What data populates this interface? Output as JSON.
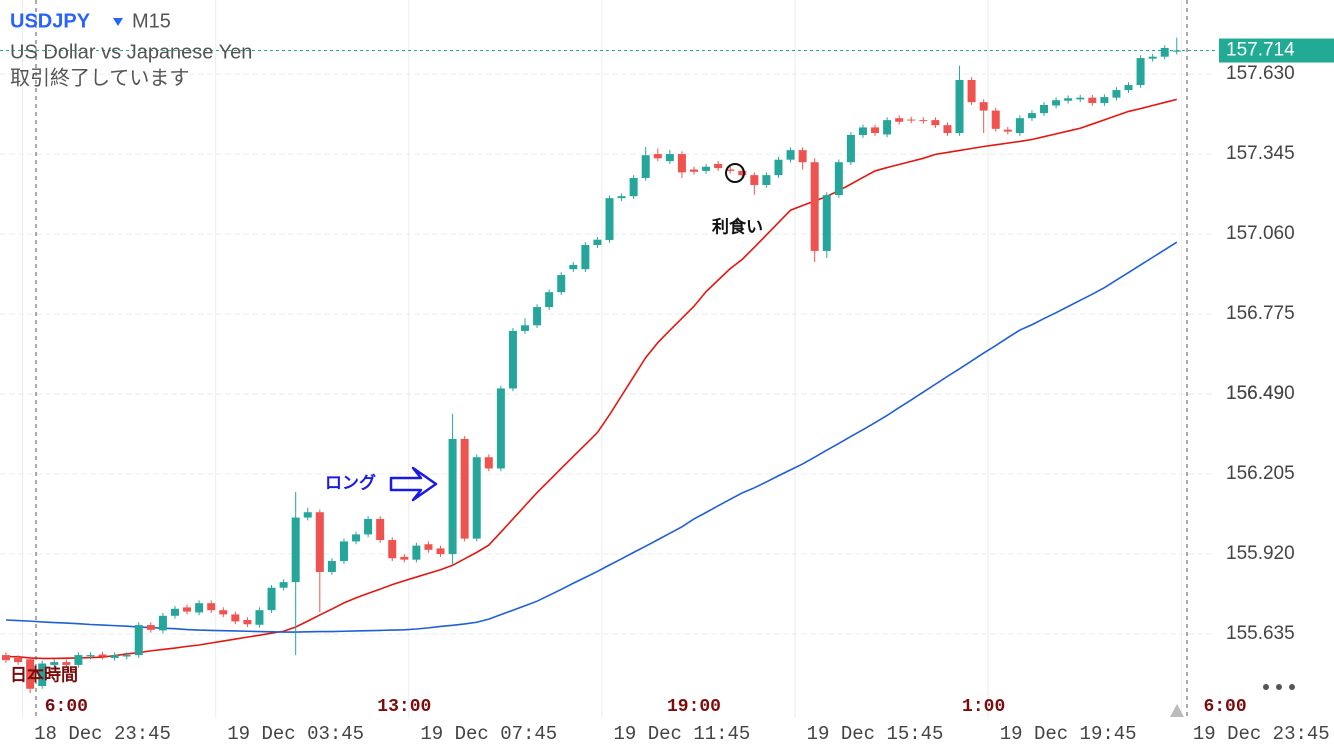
{
  "header": {
    "symbol": "USDJPY",
    "timeframe": "M15",
    "description": "US Dollar vs Japanese Yen",
    "status": "取引終了しています"
  },
  "annotations": {
    "long": "ロング",
    "take_profit": "利食い",
    "timezone_note": "日本時間"
  },
  "chart_data": {
    "type": "candlestick",
    "ylim": [
      155.343,
      157.894
    ],
    "yticks": [
      155.635,
      {
        "value": 155.92,
        "label": "155.920"
      },
      156.205,
      156.49,
      {
        "value": 156.49,
        "label": "156.490"
      },
      156.775,
      {
        "value": 157.06,
        "label": "157.060"
      },
      157.345,
      {
        "value": 157.63,
        "label": "157.630"
      }
    ],
    "grid": true,
    "up_color": "#26a69a",
    "down_color": "#ef5350",
    "last_price": 157.714,
    "last_price_color": "#22ab94",
    "categories": [
      null,
      null,
      null,
      null,
      null,
      null,
      null,
      null,
      "18 Dec 23:45",
      null,
      null,
      null,
      null,
      null,
      null,
      null,
      null,
      null,
      null,
      null,
      null,
      null,
      null,
      null,
      "19 Dec 03:45",
      null,
      null,
      null,
      null,
      null,
      null,
      null,
      null,
      null,
      null,
      null,
      null,
      null,
      null,
      null,
      "19 Dec 07:45",
      null,
      null,
      null,
      null,
      null,
      null,
      null,
      null,
      null,
      null,
      null,
      null,
      null,
      null,
      null,
      "19 Dec 11:45",
      null,
      null,
      null,
      null,
      null,
      null,
      null,
      null,
      null,
      null,
      null,
      null,
      null,
      null,
      null,
      "19 Dec 15:45",
      null,
      null,
      null,
      null,
      null,
      null,
      null,
      null,
      null,
      null,
      null,
      null,
      null,
      null,
      null,
      "19 Dec 19:45",
      null,
      null,
      null,
      null,
      null,
      null,
      null,
      null,
      null,
      null,
      null,
      null,
      null,
      null,
      null,
      "19 Dec 23:45"
    ],
    "categories_jst": [
      null,
      null,
      null,
      null,
      null,
      "6:00",
      null,
      null,
      null,
      null,
      null,
      null,
      null,
      null,
      null,
      null,
      null,
      null,
      null,
      null,
      null,
      null,
      null,
      null,
      null,
      null,
      null,
      null,
      null,
      null,
      null,
      null,
      null,
      "13:00",
      null,
      null,
      null,
      null,
      null,
      null,
      null,
      null,
      null,
      null,
      null,
      null,
      null,
      null,
      null,
      null,
      null,
      null,
      null,
      null,
      null,
      null,
      null,
      "19:00",
      null,
      null,
      null,
      null,
      null,
      null,
      null,
      null,
      null,
      null,
      null,
      null,
      null,
      null,
      null,
      null,
      null,
      null,
      null,
      null,
      null,
      null,
      null,
      "1:00",
      null,
      null,
      null,
      null,
      null,
      null,
      null,
      null,
      null,
      null,
      null,
      null,
      null,
      null,
      null,
      null,
      null,
      null,
      null,
      "6:00",
      null,
      null,
      null
    ],
    "open": [
      155.56,
      155.55,
      155.545,
      155.45,
      155.525,
      155.535,
      155.525,
      155.555,
      155.562,
      155.55,
      155.555,
      155.56,
      155.667,
      155.648,
      155.7,
      155.73,
      155.712,
      155.745,
      155.72,
      155.705,
      155.685,
      155.668,
      155.72,
      155.8,
      155.82,
      156.05,
      156.069,
      155.856,
      155.895,
      155.965,
      155.99,
      156.045,
      155.97,
      155.91,
      155.9,
      155.955,
      155.94,
      155.92,
      156.33,
      155.975,
      156.265,
      156.225,
      156.51,
      156.715,
      156.735,
      156.8,
      156.853,
      156.935,
      156.935,
      157.021,
      157.039,
      157.188,
      157.195,
      157.26,
      157.345,
      157.32,
      157.345,
      157.29,
      157.285,
      157.31,
      157.29,
      157.285,
      157.27,
      157.235,
      157.27,
      157.325,
      157.359,
      157.316,
      157.0,
      157.199,
      157.316,
      157.413,
      157.44,
      157.415,
      157.473,
      157.468,
      157.466,
      157.466,
      157.448,
      157.42,
      157.609,
      157.53,
      157.5,
      157.432,
      157.42,
      157.473,
      157.491,
      157.518,
      157.535,
      157.54,
      157.546,
      157.527,
      157.546,
      157.573,
      157.591,
      157.685,
      157.692,
      157.71,
      null,
      null,
      null,
      null,
      null,
      null,
      null
    ],
    "high": [
      155.57,
      155.56,
      155.555,
      155.54,
      155.545,
      155.545,
      155.57,
      155.57,
      155.572,
      155.57,
      155.57,
      155.677,
      155.677,
      155.71,
      155.735,
      155.74,
      155.755,
      155.755,
      155.73,
      155.715,
      155.695,
      155.73,
      155.81,
      155.83,
      156.141,
      156.085,
      156.079,
      155.905,
      155.975,
      156.0,
      156.055,
      156.055,
      155.98,
      155.92,
      155.96,
      155.965,
      155.95,
      156.42,
      156.34,
      156.275,
      156.275,
      156.52,
      156.725,
      156.76,
      156.81,
      156.863,
      156.924,
      156.96,
      157.031,
      157.05,
      157.198,
      157.205,
      157.27,
      157.37,
      157.365,
      157.36,
      157.355,
      157.3,
      157.31,
      157.32,
      157.3,
      157.295,
      157.28,
      157.28,
      157.335,
      157.369,
      157.369,
      157.33,
      157.209,
      157.326,
      157.423,
      157.45,
      157.45,
      157.476,
      157.483,
      157.478,
      157.476,
      157.476,
      157.458,
      157.66,
      157.619,
      157.54,
      157.51,
      157.442,
      157.483,
      157.501,
      157.53,
      157.547,
      157.554,
      157.556,
      157.556,
      157.558,
      157.583,
      157.601,
      157.697,
      157.702,
      157.733,
      157.76,
      null,
      null,
      null,
      null,
      null,
      null,
      null
    ],
    "low": [
      155.532,
      155.525,
      155.425,
      155.44,
      155.515,
      155.515,
      155.515,
      155.545,
      155.545,
      155.54,
      155.545,
      155.55,
      155.64,
      155.638,
      155.69,
      155.705,
      155.702,
      155.71,
      155.695,
      155.67,
      155.66,
      155.658,
      155.71,
      155.79,
      155.56,
      156.04,
      155.713,
      155.846,
      155.885,
      155.955,
      155.98,
      155.96,
      155.895,
      155.89,
      155.89,
      155.925,
      155.91,
      155.88,
      155.965,
      155.965,
      156.215,
      156.215,
      156.5,
      156.705,
      156.725,
      156.79,
      156.843,
      156.925,
      156.925,
      157.011,
      157.029,
      157.178,
      157.185,
      157.25,
      157.32,
      157.31,
      157.26,
      157.272,
      157.275,
      157.285,
      157.275,
      157.26,
      157.2,
      157.225,
      157.26,
      157.315,
      157.29,
      156.96,
      156.975,
      157.189,
      157.306,
      157.403,
      157.41,
      157.405,
      157.45,
      157.455,
      157.453,
      157.438,
      157.41,
      157.41,
      157.52,
      157.42,
      157.425,
      157.415,
      157.41,
      157.463,
      157.481,
      157.508,
      157.525,
      157.53,
      157.517,
      157.517,
      157.536,
      157.563,
      157.581,
      157.675,
      157.682,
      157.7,
      null,
      null,
      null,
      null,
      null,
      null,
      null
    ],
    "close": [
      155.542,
      155.535,
      155.44,
      155.53,
      155.535,
      155.525,
      155.56,
      155.56,
      155.555,
      155.56,
      155.56,
      155.667,
      155.65,
      155.7,
      155.725,
      155.715,
      155.745,
      155.72,
      155.705,
      155.68,
      155.67,
      155.72,
      155.8,
      155.82,
      156.05,
      156.069,
      155.856,
      155.895,
      155.965,
      155.99,
      156.045,
      155.97,
      155.905,
      155.9,
      155.95,
      155.935,
      155.92,
      156.33,
      155.975,
      156.265,
      156.225,
      156.51,
      156.715,
      156.735,
      156.8,
      156.853,
      156.914,
      156.95,
      157.021,
      157.04,
      157.188,
      157.195,
      157.26,
      157.341,
      157.33,
      157.345,
      157.28,
      157.282,
      157.3,
      157.295,
      157.285,
      157.27,
      157.235,
      157.27,
      157.325,
      157.359,
      157.316,
      157.0,
      157.199,
      157.316,
      157.413,
      157.44,
      157.42,
      157.466,
      157.46,
      157.465,
      157.463,
      157.448,
      157.42,
      157.609,
      157.53,
      157.5,
      157.435,
      157.425,
      157.473,
      157.491,
      157.52,
      157.537,
      157.544,
      157.546,
      157.527,
      157.548,
      157.573,
      157.591,
      157.687,
      157.692,
      157.723,
      157.714,
      null,
      null,
      null,
      null,
      null,
      null,
      null
    ],
    "lines": [
      {
        "color": "#e3170f",
        "values": [
          155.555,
          155.554,
          155.55,
          155.548,
          155.548,
          155.549,
          155.55,
          155.551,
          155.553,
          155.558,
          155.564,
          155.569,
          155.575,
          155.58,
          155.585,
          155.591,
          155.596,
          155.603,
          155.61,
          155.617,
          155.624,
          155.631,
          155.638,
          155.645,
          155.66,
          155.681,
          155.703,
          155.724,
          155.746,
          155.764,
          155.78,
          155.795,
          155.811,
          155.825,
          155.838,
          155.851,
          155.864,
          155.88,
          155.903,
          155.926,
          155.952,
          155.998,
          156.045,
          156.092,
          156.139,
          156.182,
          156.225,
          156.268,
          156.31,
          156.353,
          156.416,
          156.484,
          156.552,
          156.62,
          156.673,
          156.717,
          156.76,
          156.803,
          156.855,
          156.896,
          156.937,
          156.97,
          157.013,
          157.057,
          157.101,
          157.145,
          157.162,
          157.178,
          157.194,
          157.215,
          157.238,
          157.262,
          157.285,
          157.297,
          157.308,
          157.319,
          157.33,
          157.344,
          157.351,
          157.358,
          157.365,
          157.372,
          157.378,
          157.384,
          157.39,
          157.397,
          157.407,
          157.417,
          157.427,
          157.437,
          157.452,
          157.467,
          157.482,
          157.497,
          157.507,
          157.518,
          157.529,
          157.54,
          null,
          null,
          null,
          null,
          null,
          null,
          null
        ]
      },
      {
        "color": "#1f5fd6",
        "values": [
          155.685,
          155.683,
          155.681,
          155.678,
          155.676,
          155.674,
          155.672,
          155.669,
          155.667,
          155.665,
          155.663,
          155.66,
          155.658,
          155.656,
          155.654,
          155.651,
          155.649,
          155.648,
          155.647,
          155.646,
          155.645,
          155.644,
          155.643,
          155.642,
          155.642,
          155.643,
          155.644,
          155.644,
          155.645,
          155.646,
          155.647,
          155.648,
          155.649,
          155.65,
          155.653,
          155.657,
          155.662,
          155.666,
          155.671,
          155.677,
          155.688,
          155.704,
          155.72,
          155.736,
          155.752,
          155.773,
          155.794,
          155.816,
          155.837,
          155.858,
          155.881,
          155.903,
          155.926,
          155.948,
          155.971,
          155.994,
          156.017,
          156.045,
          156.068,
          156.092,
          156.115,
          156.138,
          156.156,
          156.177,
          156.199,
          156.22,
          156.241,
          156.265,
          156.29,
          156.314,
          156.339,
          156.363,
          156.388,
          156.414,
          156.442,
          156.469,
          156.497,
          156.525,
          156.553,
          156.58,
          156.608,
          156.636,
          156.663,
          156.691,
          156.718,
          156.737,
          156.759,
          156.78,
          156.802,
          156.824,
          156.846,
          156.869,
          156.896,
          156.923,
          156.95,
          156.977,
          157.004,
          157.031,
          null,
          null,
          null,
          null,
          null,
          null,
          null
        ]
      }
    ]
  }
}
